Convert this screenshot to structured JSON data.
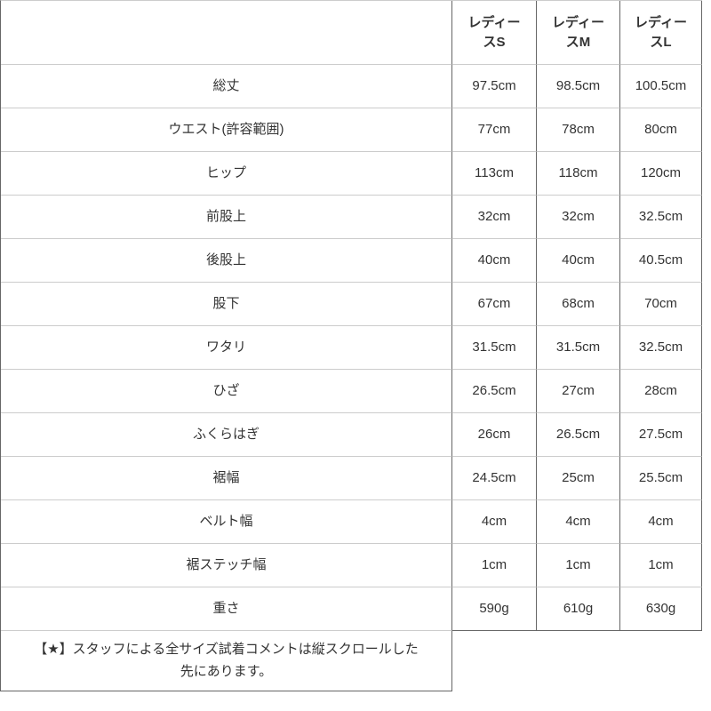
{
  "colors": {
    "background": "#ffffff",
    "text": "#333333",
    "border_vertical": "#666666",
    "border_horizontal": "#cccccc"
  },
  "table": {
    "corner_label": "",
    "columns": [
      "レディースS",
      "レディースM",
      "レディースL"
    ],
    "rows": [
      {
        "label": "総丈",
        "values": [
          "97.5cm",
          "98.5cm",
          "100.5cm"
        ]
      },
      {
        "label": "ウエスト(許容範囲)",
        "values": [
          "77cm",
          "78cm",
          "80cm"
        ]
      },
      {
        "label": "ヒップ",
        "values": [
          "113cm",
          "118cm",
          "120cm"
        ]
      },
      {
        "label": "前股上",
        "values": [
          "32cm",
          "32cm",
          "32.5cm"
        ]
      },
      {
        "label": "後股上",
        "values": [
          "40cm",
          "40cm",
          "40.5cm"
        ]
      },
      {
        "label": "股下",
        "values": [
          "67cm",
          "68cm",
          "70cm"
        ]
      },
      {
        "label": "ワタリ",
        "values": [
          "31.5cm",
          "31.5cm",
          "32.5cm"
        ]
      },
      {
        "label": "ひざ",
        "values": [
          "26.5cm",
          "27cm",
          "28cm"
        ]
      },
      {
        "label": "ふくらはぎ",
        "values": [
          "26cm",
          "26.5cm",
          "27.5cm"
        ]
      },
      {
        "label": "裾幅",
        "values": [
          "24.5cm",
          "25cm",
          "25.5cm"
        ]
      },
      {
        "label": "ベルト幅",
        "values": [
          "4cm",
          "4cm",
          "4cm"
        ]
      },
      {
        "label": "裾ステッチ幅",
        "values": [
          "1cm",
          "1cm",
          "1cm"
        ]
      },
      {
        "label": "重さ",
        "values": [
          "590g",
          "610g",
          "630g"
        ]
      }
    ],
    "footnote": "【★】スタッフによる全サイズ試着コメントは縦スクロールした先にあります。"
  }
}
